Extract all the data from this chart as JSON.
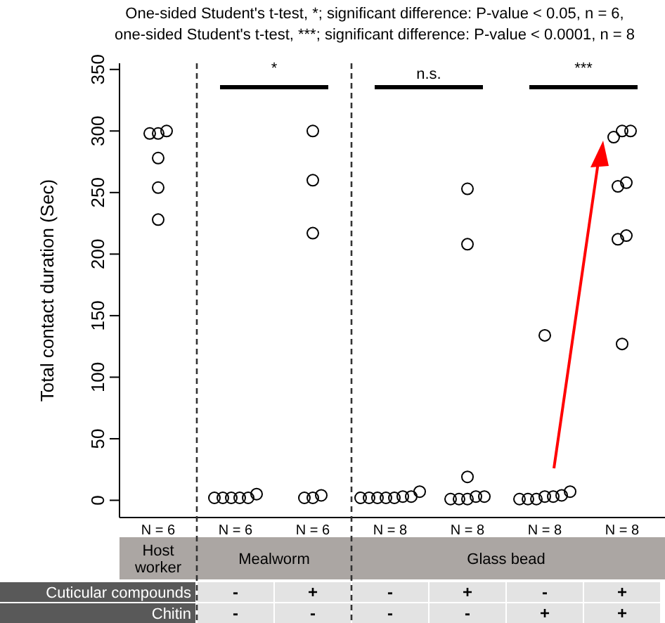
{
  "chart_data": {
    "type": "scatter",
    "title": "One-sided Student's t-test, *; significant difference: P-value < 0.05, n = 6,",
    "subtitle": "one-sided Student's t-test, ***; significant difference: P-value < 0.0001, n = 8",
    "ylabel": "Total contact duration (Sec)",
    "categories": [
      "N = 6",
      "N = 6",
      "N = 6",
      "N = 8",
      "N = 8",
      "N = 8",
      "N = 8"
    ],
    "ylim": [
      -14,
      355
    ],
    "yticks": [
      0,
      50,
      100,
      150,
      200,
      250,
      300,
      350
    ],
    "grid": false,
    "marker": "circle",
    "series": [
      {
        "color": "#000000",
        "values": [
          300,
          5,
          300,
          3,
          253,
          134,
          300
        ]
      },
      {
        "color": "#000000",
        "values": [
          298,
          2,
          260,
          2,
          208,
          3,
          300
        ]
      },
      {
        "color": "#000000",
        "values": [
          298,
          2,
          217,
          2,
          19,
          1,
          295
        ]
      },
      {
        "color": "#000000",
        "values": [
          278,
          2,
          4,
          2,
          3,
          1,
          255
        ]
      },
      {
        "color": "#000000",
        "values": [
          254,
          2,
          2,
          7,
          1,
          7,
          258
        ]
      },
      {
        "color": "#000000",
        "values": [
          228,
          2,
          2,
          2,
          1,
          1,
          212
        ]
      },
      {
        "color": "#000000",
        "values": [
          null,
          null,
          null,
          2,
          1,
          3,
          215
        ]
      },
      {
        "color": "#000000",
        "values": [
          null,
          null,
          null,
          3,
          3,
          4,
          127
        ]
      }
    ],
    "annotations": [
      "*",
      "n.s.",
      "***",
      "Host worker",
      "Mealworm",
      "Glass bead",
      "Cuticular compounds",
      "Chitin",
      "-",
      "+",
      "-",
      "+",
      "-",
      "+",
      "-",
      "-",
      "-",
      "-",
      "+",
      "+"
    ]
  }
}
